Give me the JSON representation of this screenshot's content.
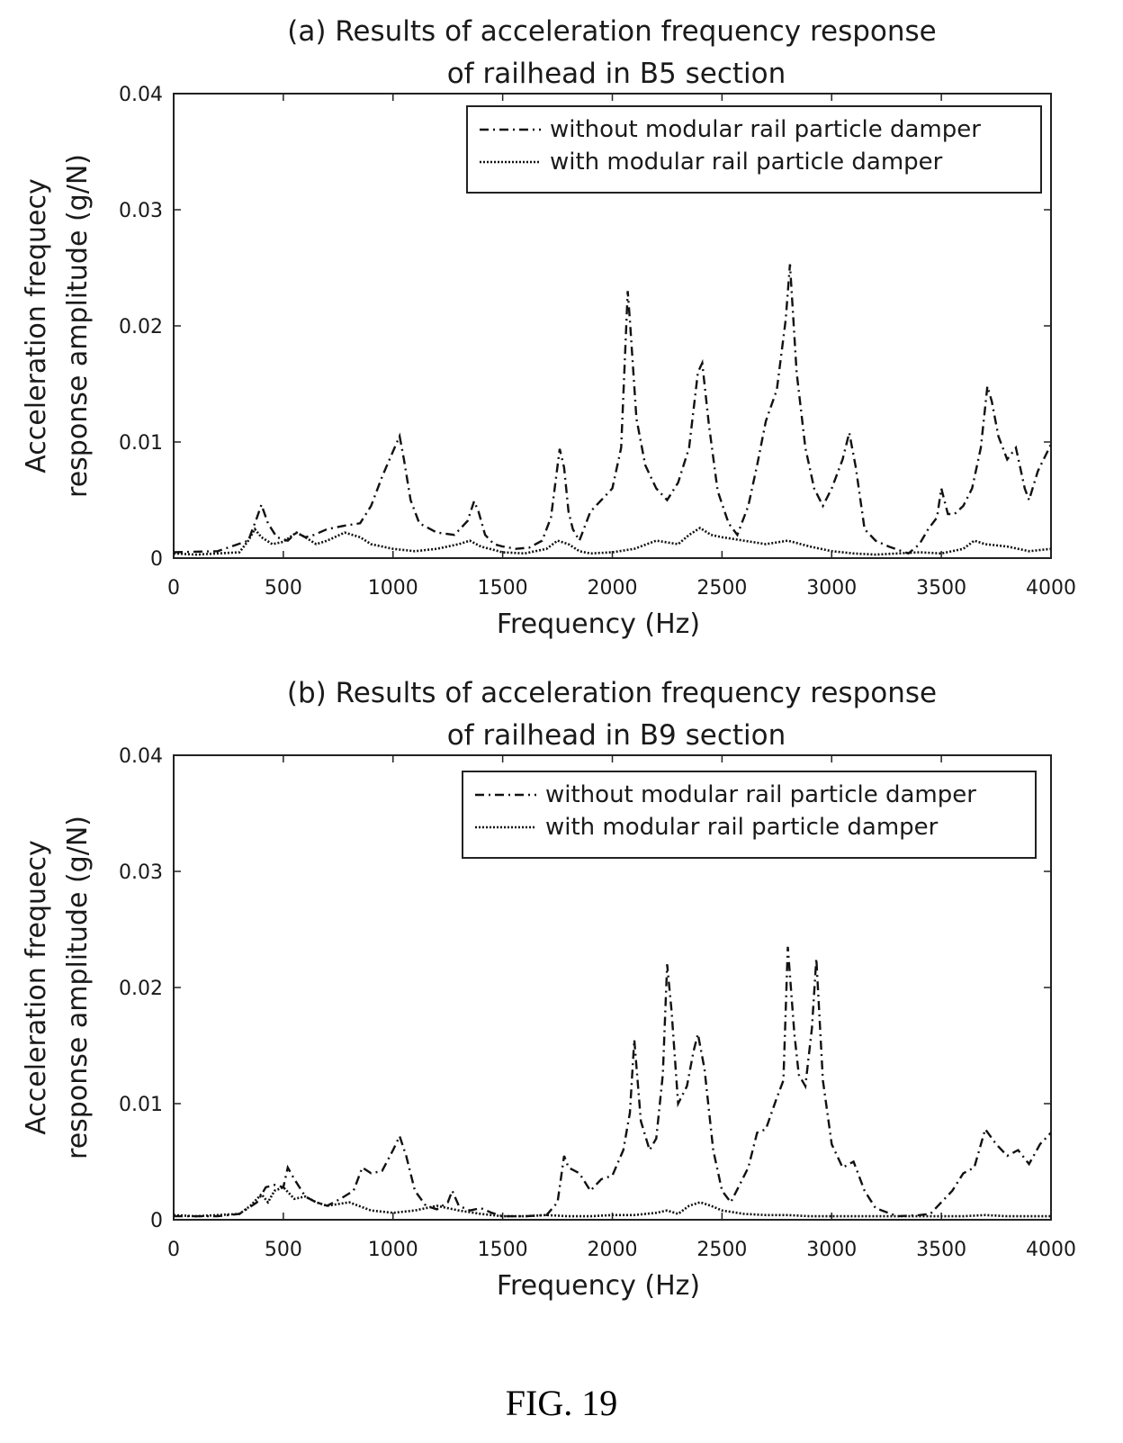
{
  "chart_data": [
    {
      "type": "line",
      "title": "(a) Results of acceleration frequency response",
      "subtitle": "of railhead in B5 section",
      "xlabel": "Frequency (Hz)",
      "ylabel_line1": "Acceleration frequecy",
      "ylabel_line2": "response amplitude (g/N)",
      "xlim": [
        0,
        4000
      ],
      "ylim": [
        0,
        0.04
      ],
      "xticks": [
        0,
        500,
        1000,
        1500,
        2000,
        2500,
        3000,
        3500,
        4000
      ],
      "xtick_labels": [
        "0",
        "500",
        "1000",
        "1500",
        "2000",
        "2500",
        "3000",
        "3500",
        "4000"
      ],
      "yticks": [
        0,
        0.01,
        0.02,
        0.03,
        0.04
      ],
      "ytick_labels": [
        "0",
        "0.01",
        "0.02",
        "0.03",
        "0.04"
      ],
      "grid": false,
      "legend_position": "top-right",
      "series": [
        {
          "name": "without modular rail particle damper",
          "style": "dashdot",
          "x": [
            0,
            200,
            340,
            380,
            400,
            430,
            470,
            520,
            560,
            600,
            640,
            700,
            780,
            850,
            900,
            950,
            1000,
            1030,
            1050,
            1080,
            1120,
            1200,
            1280,
            1340,
            1370,
            1390,
            1420,
            1460,
            1500,
            1560,
            1620,
            1680,
            1720,
            1760,
            1780,
            1800,
            1820,
            1850,
            1900,
            1950,
            2000,
            2040,
            2070,
            2080,
            2110,
            2150,
            2200,
            2250,
            2300,
            2350,
            2390,
            2410,
            2440,
            2480,
            2530,
            2570,
            2620,
            2660,
            2700,
            2750,
            2790,
            2810,
            2840,
            2880,
            2920,
            2960,
            3000,
            3050,
            3080,
            3110,
            3150,
            3200,
            3260,
            3320,
            3350,
            3400,
            3440,
            3480,
            3500,
            3530,
            3560,
            3600,
            3640,
            3680,
            3710,
            3730,
            3760,
            3800,
            3840,
            3880,
            3900,
            3940,
            4000
          ],
          "y": [
            0.0005,
            0.0006,
            0.0015,
            0.0035,
            0.0046,
            0.003,
            0.0018,
            0.0015,
            0.0022,
            0.0018,
            0.002,
            0.0025,
            0.0028,
            0.003,
            0.0045,
            0.007,
            0.0092,
            0.0105,
            0.0085,
            0.005,
            0.003,
            0.0022,
            0.002,
            0.0032,
            0.0049,
            0.004,
            0.002,
            0.0012,
            0.001,
            0.0008,
            0.0009,
            0.0015,
            0.0035,
            0.0094,
            0.0078,
            0.004,
            0.0025,
            0.0015,
            0.004,
            0.005,
            0.006,
            0.0095,
            0.023,
            0.0205,
            0.012,
            0.008,
            0.006,
            0.005,
            0.0065,
            0.0095,
            0.016,
            0.0168,
            0.0115,
            0.0058,
            0.003,
            0.002,
            0.0045,
            0.008,
            0.0118,
            0.0145,
            0.0205,
            0.0253,
            0.016,
            0.0095,
            0.006,
            0.0045,
            0.006,
            0.0085,
            0.0108,
            0.0078,
            0.0025,
            0.0015,
            0.001,
            0.0006,
            0.0004,
            0.0012,
            0.0025,
            0.0035,
            0.006,
            0.0038,
            0.0038,
            0.0045,
            0.006,
            0.0095,
            0.0148,
            0.0135,
            0.0105,
            0.0085,
            0.0095,
            0.006,
            0.005,
            0.0075,
            0.0098
          ]
        },
        {
          "name": "with modular rail particle damper",
          "style": "dotted",
          "x": [
            0,
            100,
            200,
            300,
            340,
            370,
            400,
            450,
            500,
            560,
            600,
            650,
            700,
            780,
            850,
            900,
            1000,
            1100,
            1200,
            1300,
            1350,
            1400,
            1500,
            1600,
            1700,
            1750,
            1800,
            1850,
            1900,
            2000,
            2100,
            2200,
            2300,
            2350,
            2400,
            2450,
            2500,
            2600,
            2700,
            2800,
            2900,
            3000,
            3100,
            3200,
            3300,
            3400,
            3500,
            3600,
            3650,
            3700,
            3800,
            3900,
            4000
          ],
          "y": [
            0.0004,
            0.0003,
            0.0004,
            0.0005,
            0.0015,
            0.0025,
            0.0018,
            0.0012,
            0.0014,
            0.0022,
            0.0018,
            0.0012,
            0.0015,
            0.0022,
            0.0018,
            0.0012,
            0.0008,
            0.0006,
            0.0008,
            0.0012,
            0.0015,
            0.001,
            0.0005,
            0.0004,
            0.0008,
            0.0015,
            0.0012,
            0.0006,
            0.0004,
            0.0005,
            0.0008,
            0.0015,
            0.0012,
            0.002,
            0.0026,
            0.002,
            0.0018,
            0.0015,
            0.0012,
            0.0015,
            0.001,
            0.0006,
            0.0004,
            0.0003,
            0.0004,
            0.0005,
            0.0004,
            0.0008,
            0.0015,
            0.0012,
            0.001,
            0.0006,
            0.0008
          ]
        }
      ]
    },
    {
      "type": "line",
      "title": "(b) Results of acceleration frequency response",
      "subtitle": "of railhead in B9 section",
      "xlabel": "Frequency (Hz)",
      "ylabel_line1": "Acceleration frequecy",
      "ylabel_line2": "response amplitude (g/N)",
      "xlim": [
        0,
        4000
      ],
      "ylim": [
        0,
        0.04
      ],
      "xticks": [
        0,
        500,
        1000,
        1500,
        2000,
        2500,
        3000,
        3500,
        4000
      ],
      "xtick_labels": [
        "0",
        "500",
        "1000",
        "1500",
        "2000",
        "2500",
        "3000",
        "3500",
        "4000"
      ],
      "yticks": [
        0,
        0.01,
        0.02,
        0.03,
        0.04
      ],
      "ytick_labels": [
        "0",
        "0.01",
        "0.02",
        "0.03",
        "0.04"
      ],
      "grid": false,
      "legend_position": "top-right",
      "series": [
        {
          "name": "without modular rail particle damper",
          "style": "dashdot",
          "x": [
            0,
            200,
            300,
            380,
            420,
            460,
            500,
            520,
            550,
            600,
            650,
            700,
            760,
            820,
            860,
            900,
            950,
            1000,
            1030,
            1060,
            1100,
            1150,
            1200,
            1250,
            1270,
            1300,
            1350,
            1400,
            1450,
            1500,
            1600,
            1700,
            1750,
            1780,
            1800,
            1850,
            1900,
            1950,
            2000,
            2050,
            2080,
            2100,
            2130,
            2170,
            2200,
            2230,
            2250,
            2270,
            2300,
            2340,
            2370,
            2390,
            2420,
            2460,
            2500,
            2540,
            2580,
            2620,
            2660,
            2700,
            2750,
            2780,
            2800,
            2830,
            2850,
            2880,
            2910,
            2930,
            2960,
            3000,
            3050,
            3100,
            3150,
            3200,
            3300,
            3400,
            3450,
            3500,
            3550,
            3600,
            3650,
            3700,
            3750,
            3800,
            3850,
            3900,
            3950,
            4000
          ],
          "y": [
            0.0003,
            0.0003,
            0.0005,
            0.0015,
            0.0028,
            0.003,
            0.0028,
            0.0045,
            0.0035,
            0.002,
            0.0015,
            0.0012,
            0.0018,
            0.0025,
            0.0045,
            0.004,
            0.0042,
            0.006,
            0.0072,
            0.0055,
            0.0025,
            0.0012,
            0.0009,
            0.0015,
            0.0025,
            0.0012,
            0.0008,
            0.001,
            0.0006,
            0.0003,
            0.0003,
            0.0004,
            0.0015,
            0.0055,
            0.0045,
            0.004,
            0.0025,
            0.0035,
            0.0038,
            0.006,
            0.0092,
            0.0155,
            0.0085,
            0.006,
            0.007,
            0.0125,
            0.022,
            0.018,
            0.01,
            0.0115,
            0.0145,
            0.016,
            0.013,
            0.006,
            0.0025,
            0.0015,
            0.003,
            0.0045,
            0.0075,
            0.0078,
            0.0105,
            0.012,
            0.0235,
            0.016,
            0.0125,
            0.0115,
            0.0165,
            0.0225,
            0.012,
            0.0065,
            0.0045,
            0.005,
            0.0025,
            0.001,
            0.0003,
            0.0004,
            0.0005,
            0.0015,
            0.0025,
            0.004,
            0.0045,
            0.0078,
            0.0065,
            0.0055,
            0.006,
            0.0048,
            0.0065,
            0.0075
          ]
        },
        {
          "name": "with modular rail particle damper",
          "style": "dotted",
          "x": [
            0,
            100,
            200,
            300,
            350,
            400,
            430,
            460,
            500,
            550,
            600,
            650,
            700,
            800,
            900,
            1000,
            1100,
            1200,
            1300,
            1400,
            1500,
            1600,
            1700,
            1800,
            1900,
            2000,
            2100,
            2200,
            2250,
            2300,
            2350,
            2400,
            2450,
            2500,
            2600,
            2700,
            2800,
            2900,
            3000,
            3100,
            3200,
            3300,
            3400,
            3500,
            3600,
            3700,
            3800,
            3900,
            4000
          ],
          "y": [
            0.0004,
            0.0003,
            0.0004,
            0.0005,
            0.0012,
            0.0022,
            0.0015,
            0.0025,
            0.0028,
            0.0018,
            0.002,
            0.0015,
            0.0012,
            0.0015,
            0.0008,
            0.0006,
            0.0008,
            0.0012,
            0.0008,
            0.0005,
            0.0003,
            0.0003,
            0.0004,
            0.0003,
            0.0003,
            0.0004,
            0.0004,
            0.0006,
            0.0008,
            0.0005,
            0.0012,
            0.0015,
            0.0012,
            0.0008,
            0.0005,
            0.0004,
            0.0004,
            0.0003,
            0.0003,
            0.0003,
            0.0003,
            0.0003,
            0.0003,
            0.0003,
            0.0003,
            0.0004,
            0.0003,
            0.0003,
            0.0003
          ]
        }
      ]
    }
  ],
  "figure_caption": "FIG. 19"
}
